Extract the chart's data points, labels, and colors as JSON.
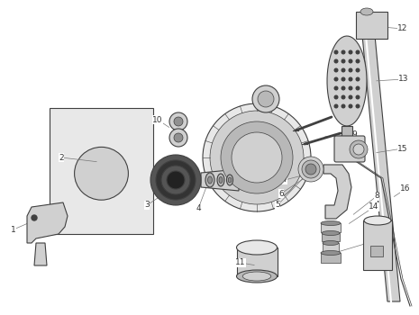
{
  "bg_color": "#ffffff",
  "line_color": "#404040",
  "gray1": "#e8e8e8",
  "gray2": "#d0d0d0",
  "gray3": "#b8b8b8",
  "gray4": "#909090",
  "figsize": [
    4.65,
    3.5
  ],
  "dpi": 100
}
